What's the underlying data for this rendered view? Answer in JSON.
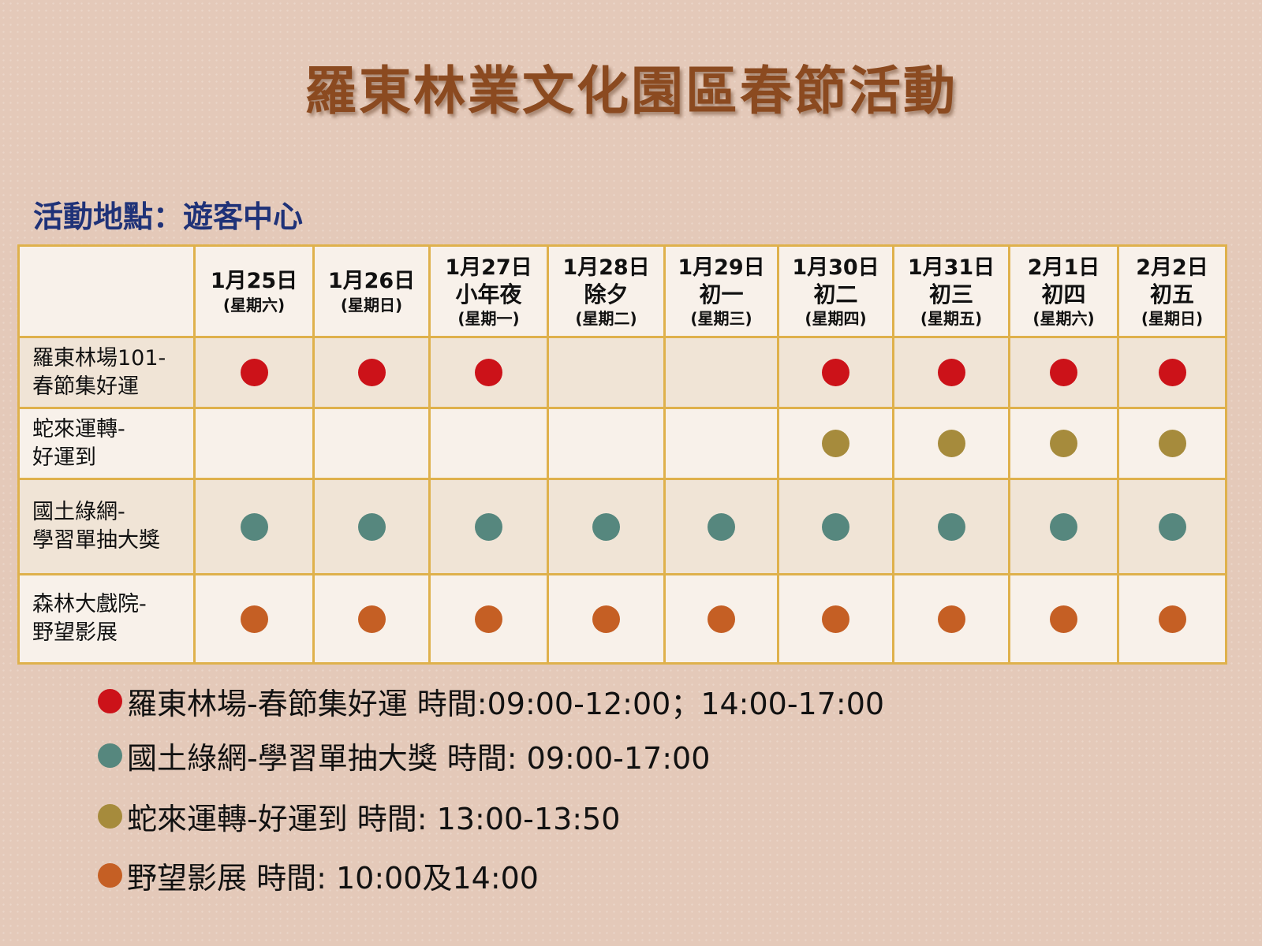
{
  "title": "羅東林業文化園區春節活動",
  "location": "活動地點：遊客中心",
  "colors": {
    "red": "#cc1219",
    "olive": "#a68b3c",
    "teal": "#56877e",
    "orange": "#c55f24"
  },
  "days": [
    {
      "date": "1月25日",
      "label": "",
      "weekday": "(星期六)"
    },
    {
      "date": "1月26日",
      "label": "",
      "weekday": "(星期日)"
    },
    {
      "date": "1月27日",
      "label": "小年夜",
      "weekday": "(星期一)"
    },
    {
      "date": "1月28日",
      "label": "除夕",
      "weekday": "(星期二)"
    },
    {
      "date": "1月29日",
      "label": "初一",
      "weekday": "(星期三)"
    },
    {
      "date": "1月30日",
      "label": "初二",
      "weekday": "(星期四)"
    },
    {
      "date": "1月31日",
      "label": "初三",
      "weekday": "(星期五)"
    },
    {
      "date": "2月1日",
      "label": "初四",
      "weekday": "(星期六)"
    },
    {
      "date": "2月2日",
      "label": "初五",
      "weekday": "(星期日)"
    }
  ],
  "activities": [
    {
      "line1": "羅東林場101-",
      "line2": "春節集好運",
      "color": "red",
      "days": [
        1,
        1,
        1,
        0,
        0,
        1,
        1,
        1,
        1
      ]
    },
    {
      "line1": "蛇來運轉-",
      "line2": "好運到",
      "color": "olive",
      "days": [
        0,
        0,
        0,
        0,
        0,
        1,
        1,
        1,
        1
      ]
    },
    {
      "line1": "國土綠網-",
      "line2": "學習單抽大獎",
      "color": "teal",
      "days": [
        1,
        1,
        1,
        1,
        1,
        1,
        1,
        1,
        1
      ]
    },
    {
      "line1": "森林大戲院-",
      "line2": "野望影展",
      "color": "orange",
      "days": [
        1,
        1,
        1,
        1,
        1,
        1,
        1,
        1,
        1
      ]
    }
  ],
  "legend": [
    {
      "color": "red",
      "text": "羅東林場-春節集好運  時間:09:00-12:00；14:00-17:00"
    },
    {
      "color": "teal",
      "text": "國土綠網-學習單抽大獎 時間: 09:00-17:00"
    },
    {
      "color": "olive",
      "text": "蛇來運轉-好運到 時間: 13:00-13:50"
    },
    {
      "color": "orange",
      "text": "野望影展 時間: 10:00及14:00"
    }
  ]
}
